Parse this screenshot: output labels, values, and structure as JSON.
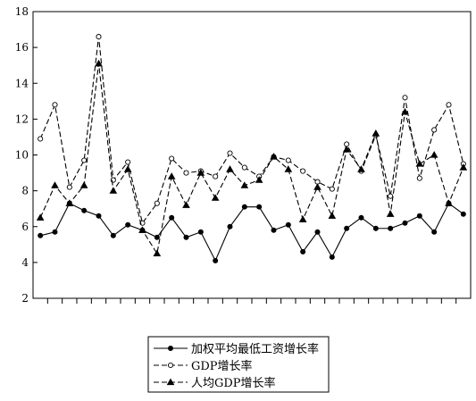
{
  "chart_data": {
    "type": "line",
    "title": "",
    "xlabel": "",
    "ylabel": "",
    "ylim": [
      2,
      18
    ],
    "yticks": [
      2,
      4,
      6,
      8,
      10,
      12,
      14,
      16,
      18
    ],
    "grid": false,
    "legend_position": "bottom-center",
    "x_count": 30,
    "series": [
      {
        "name": "加权平均最低工资增长率",
        "line_style": "solid",
        "marker": "filled-circle",
        "color": "#000000",
        "values": [
          5.5,
          5.7,
          7.3,
          6.9,
          6.6,
          5.5,
          6.1,
          5.8,
          5.4,
          6.5,
          5.4,
          5.7,
          4.1,
          6.0,
          7.1,
          7.1,
          5.8,
          6.1,
          4.6,
          5.7,
          4.3,
          5.9,
          6.5,
          5.9,
          5.9,
          6.2,
          6.6,
          5.7,
          7.3,
          6.7
        ]
      },
      {
        "name": "GDP增长率",
        "line_style": "dashed",
        "marker": "open-circle",
        "color": "#000000",
        "values": [
          10.9,
          12.8,
          8.2,
          9.7,
          16.6,
          8.6,
          9.6,
          6.2,
          7.3,
          9.8,
          9.0,
          9.1,
          8.8,
          10.1,
          9.3,
          8.8,
          9.9,
          9.7,
          9.1,
          8.5,
          8.1,
          10.6,
          9.1,
          11.1,
          7.7,
          13.2,
          8.7,
          11.4,
          12.8,
          9.5
        ]
      },
      {
        "name": "人均GDP增长率",
        "line_style": "dashed",
        "marker": "filled-triangle",
        "color": "#000000",
        "values": [
          6.5,
          8.3,
          7.3,
          8.3,
          15.1,
          8.0,
          9.2,
          5.8,
          4.5,
          8.8,
          7.2,
          9.0,
          7.6,
          9.2,
          8.3,
          8.6,
          9.9,
          9.2,
          6.4,
          8.2,
          6.6,
          10.3,
          9.2,
          11.2,
          6.7,
          12.4,
          9.5,
          10.0,
          7.3,
          9.3
        ]
      }
    ]
  }
}
